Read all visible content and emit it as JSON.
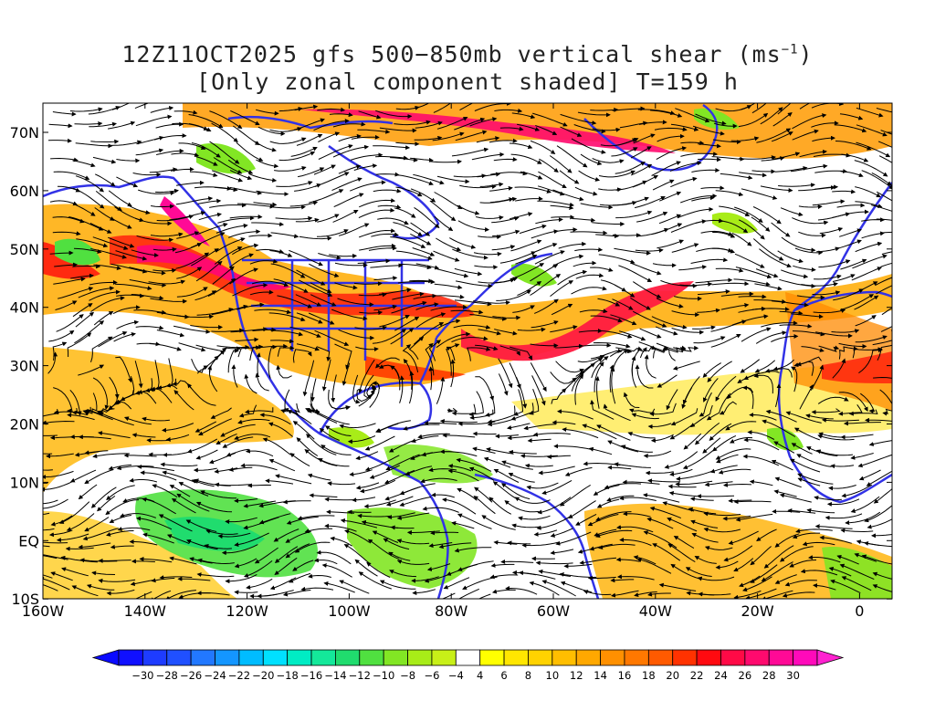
{
  "title": {
    "line1_prefix": "12Z11OCT2025 gfs 500−850mb vertical shear (ms",
    "line1_exp": "−1",
    "line1_suffix": ")",
    "line2": "[Only zonal component shaded] T=159 h"
  },
  "axes": {
    "lon_labels": [
      "160W",
      "140W",
      "120W",
      "100W",
      "80W",
      "60W",
      "40W",
      "20W",
      "0"
    ],
    "lat_labels": [
      "70N",
      "60N",
      "50N",
      "40N",
      "30N",
      "20N",
      "10N",
      "EQ",
      "10S"
    ]
  },
  "colorbar": {
    "labels": [
      "−30",
      "−28",
      "−26",
      "−24",
      "−22",
      "−20",
      "−18",
      "−16",
      "−14",
      "−12",
      "−10",
      "−8",
      "−6",
      "−4",
      "4",
      "6",
      "8",
      "10",
      "12",
      "14",
      "16",
      "18",
      "20",
      "22",
      "24",
      "26",
      "28",
      "30"
    ],
    "colors": [
      "#1010ff",
      "#1e3cff",
      "#2050ff",
      "#2278ff",
      "#1496ff",
      "#00bcff",
      "#00e0ff",
      "#00ecc4",
      "#14e89a",
      "#20dc6e",
      "#50e040",
      "#82e624",
      "#a8ec18",
      "#c8f018",
      "#ffffff",
      "#ffff00",
      "#ffe600",
      "#ffd200",
      "#ffbe00",
      "#ffa800",
      "#ff9000",
      "#ff7800",
      "#ff5a00",
      "#ff3200",
      "#ff0a10",
      "#ff0a46",
      "#ff0a6e",
      "#ff0a96",
      "#ff0aba"
    ],
    "left_arrow_color": "#0a0aff",
    "right_arrow_color": "#ff22d0"
  },
  "map_colors": {
    "coastline": "#3232e6",
    "streamline": "#000000"
  }
}
